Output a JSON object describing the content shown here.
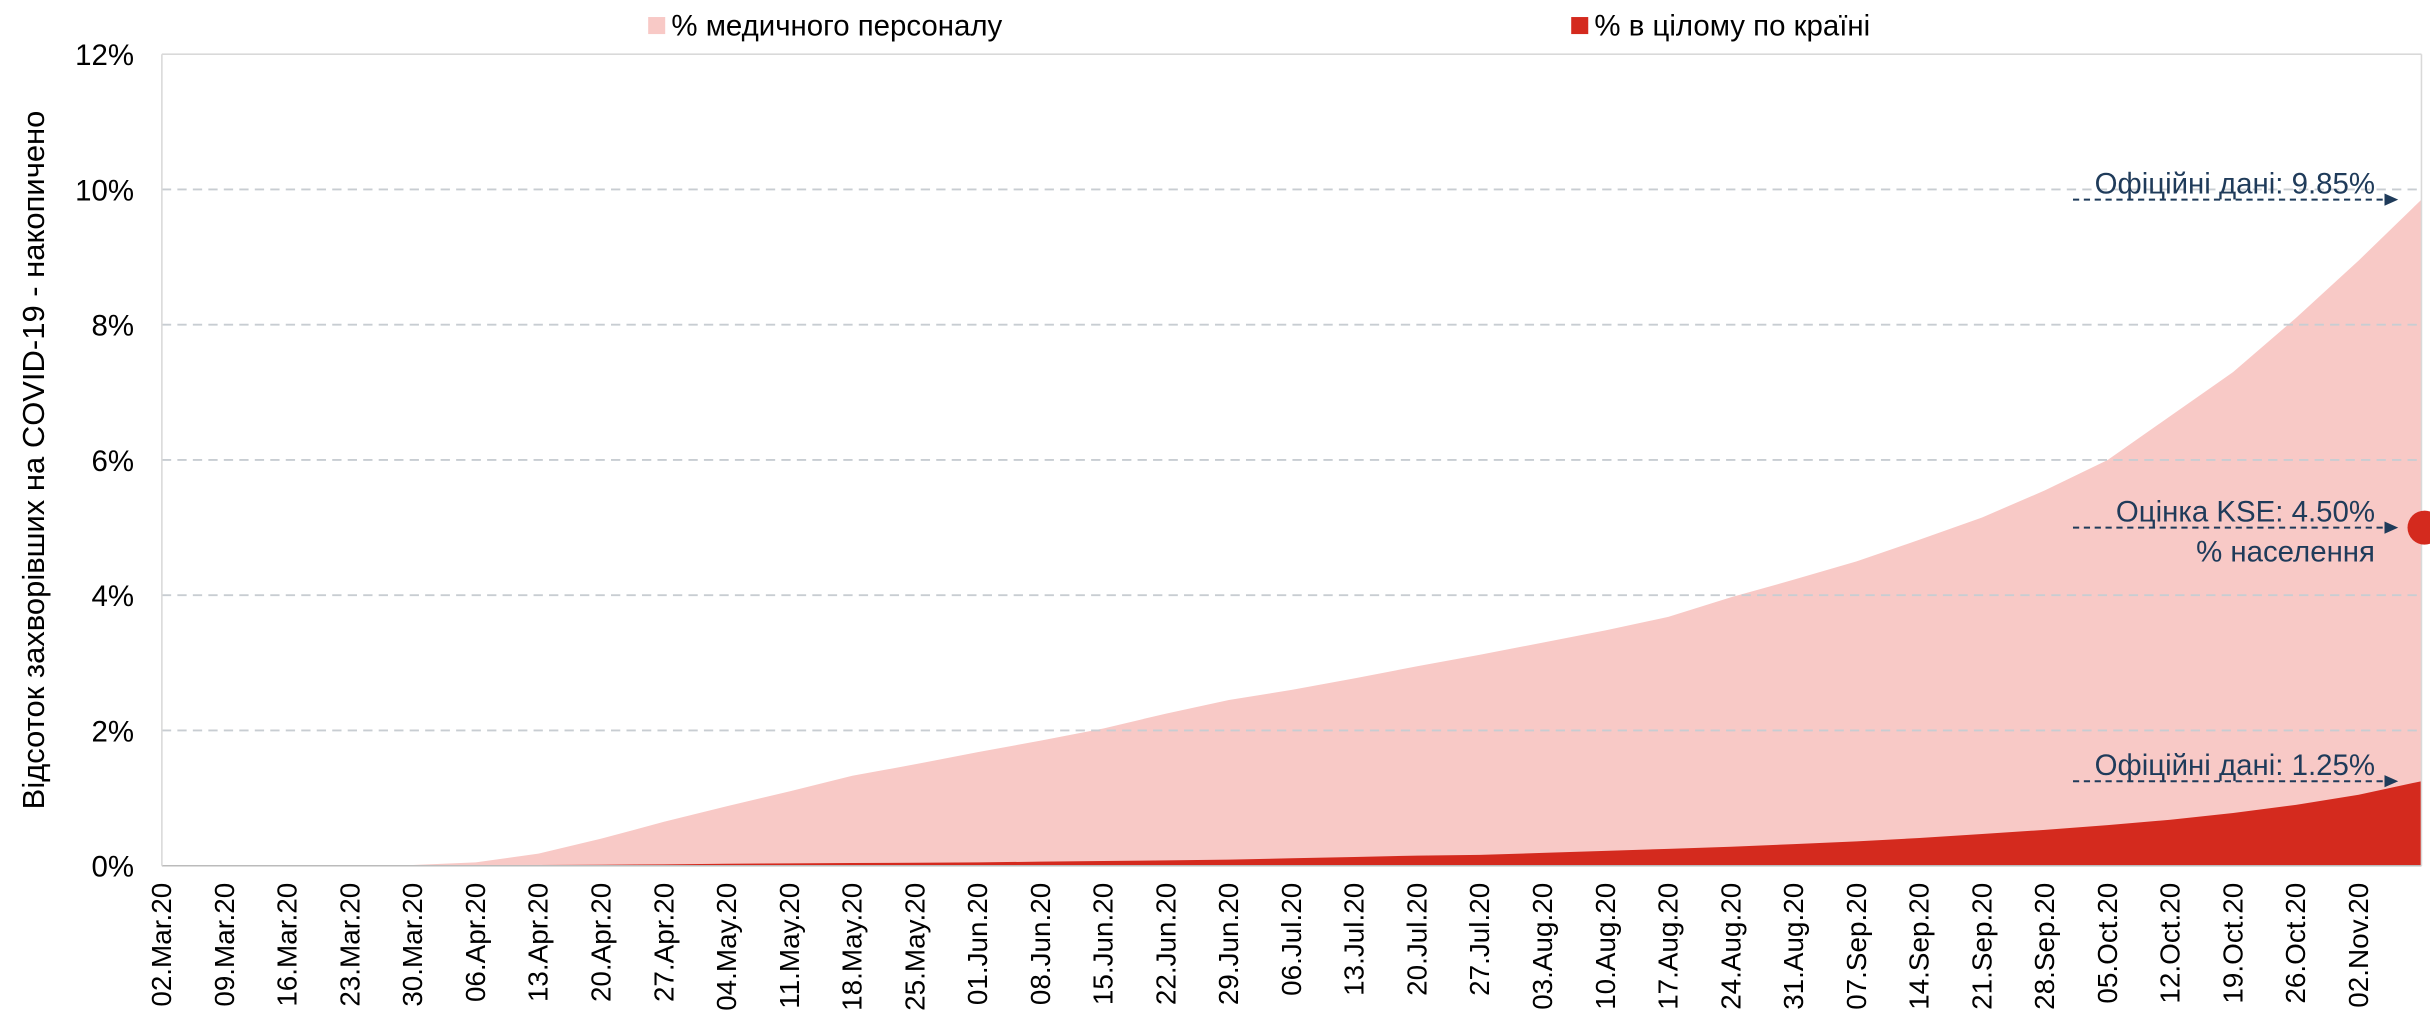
{
  "chart_data": {
    "type": "area",
    "y_axis_label": "Відсоток захворівших на COVID-19 - накопичено",
    "categories": [
      "02.Mar.20",
      "09.Mar.20",
      "16.Mar.20",
      "23.Mar.20",
      "30.Mar.20",
      "06.Apr.20",
      "13.Apr.20",
      "20.Apr.20",
      "27.Apr.20",
      "04.May.20",
      "11.May.20",
      "18.May.20",
      "25.May.20",
      "01.Jun.20",
      "08.Jun.20",
      "15.Jun.20",
      "22.Jun.20",
      "29.Jun.20",
      "06.Jul.20",
      "13.Jul.20",
      "20.Jul.20",
      "27.Jul.20",
      "03.Aug.20",
      "10.Aug.20",
      "17.Aug.20",
      "24.Aug.20",
      "31.Aug.20",
      "07.Sep.20",
      "14.Sep.20",
      "21.Sep.20",
      "28.Sep.20",
      "05.Oct.20",
      "12.Oct.20",
      "19.Oct.20",
      "26.Oct.20",
      "02.Nov.20",
      null
    ],
    "series": [
      {
        "name": "% медичного персоналу",
        "color": "#f8c9c6",
        "values": [
          0,
          0,
          0,
          0,
          0.01,
          0.05,
          0.18,
          0.4,
          0.65,
          0.88,
          1.1,
          1.33,
          1.5,
          1.68,
          1.85,
          2.03,
          2.25,
          2.45,
          2.6,
          2.77,
          2.95,
          3.12,
          3.3,
          3.48,
          3.68,
          3.97,
          4.23,
          4.5,
          4.82,
          5.15,
          5.55,
          6.0,
          6.65,
          7.3,
          8.1,
          8.95,
          9.85
        ]
      },
      {
        "name": "% в цілому по країні",
        "color": "#d42a1e",
        "values": [
          0,
          0,
          0,
          0,
          0,
          0.005,
          0.01,
          0.015,
          0.02,
          0.03,
          0.035,
          0.04,
          0.045,
          0.05,
          0.06,
          0.07,
          0.08,
          0.09,
          0.11,
          0.13,
          0.15,
          0.16,
          0.19,
          0.22,
          0.25,
          0.28,
          0.32,
          0.36,
          0.41,
          0.47,
          0.53,
          0.6,
          0.68,
          0.78,
          0.9,
          1.05,
          1.25
        ]
      }
    ],
    "ylim": [
      0,
      12
    ],
    "yticks": [
      {
        "value": 0,
        "label": "0%"
      },
      {
        "value": 2,
        "label": "2%"
      },
      {
        "value": 4,
        "label": "4%"
      },
      {
        "value": 6,
        "label": "6%"
      },
      {
        "value": 8,
        "label": "8%"
      },
      {
        "value": 10,
        "label": "10%"
      },
      {
        "value": 12,
        "label": "12%"
      }
    ],
    "grid": true,
    "legend": "top",
    "annotations": [
      {
        "text": "Офіційні дані: 9.85%"
      },
      {
        "text": "Оцінка KSE: 4.50%",
        "subtext": "% населення",
        "marker_value": 5,
        "marker_color": "#d42a1e"
      },
      {
        "text": "Офіційні дані: 1.25%"
      }
    ]
  }
}
